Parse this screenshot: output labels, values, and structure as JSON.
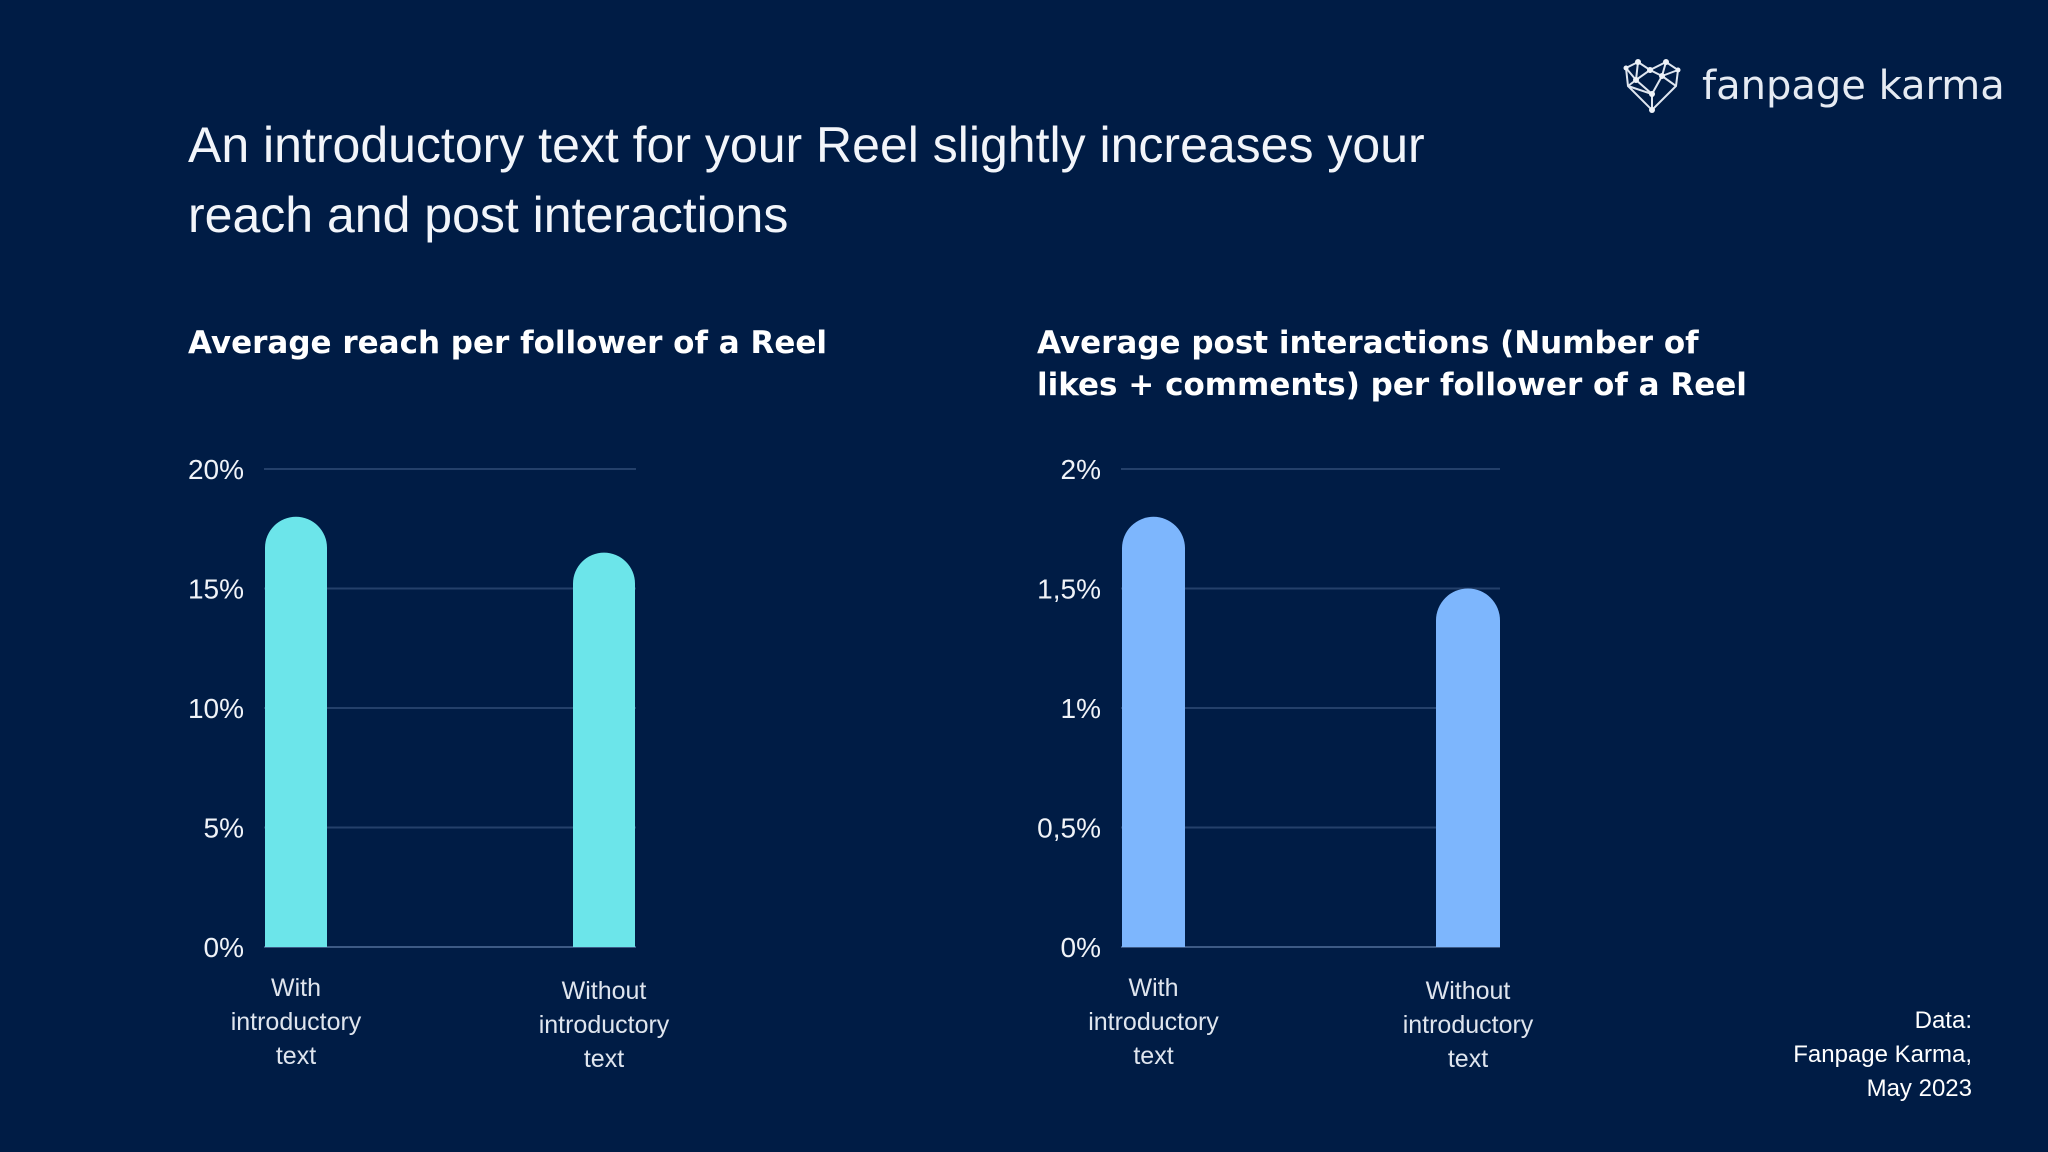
{
  "title": "An introductory text for your Reel slightly increases your reach and post interactions",
  "logo": {
    "text": "fanpage karma",
    "icon": "network-heart-icon"
  },
  "source": {
    "lines": [
      "Data:",
      "Fanpage Karma,",
      "May 2023"
    ]
  },
  "chart_data": [
    {
      "type": "bar",
      "title": "Average reach per follower of a Reel",
      "categories": [
        "With introductory text",
        "Without introductory text"
      ],
      "category_lines": [
        [
          "With",
          "introductory",
          "text"
        ],
        [
          "Without",
          "introductory",
          "text"
        ]
      ],
      "values": [
        18,
        16.5
      ],
      "unit": "%",
      "ylim": [
        0,
        20
      ],
      "yticks": [
        0,
        5,
        10,
        15,
        20
      ],
      "ytick_labels": [
        "0%",
        "5%",
        "10%",
        "15%",
        "20%"
      ],
      "grid": true,
      "color": "#6ce5ea"
    },
    {
      "type": "bar",
      "title": "Average post interactions (Number of likes + comments) per follower of a Reel",
      "categories": [
        "With introductory text",
        "Without introductory text"
      ],
      "category_lines": [
        [
          "With",
          "introductory",
          "text"
        ],
        [
          "Without",
          "introductory",
          "text"
        ]
      ],
      "values": [
        1.8,
        1.5
      ],
      "unit": "%",
      "ylim": [
        0,
        2
      ],
      "yticks": [
        0,
        0.5,
        1,
        1.5,
        2
      ],
      "ytick_labels": [
        "0%",
        "0,5%",
        "1%",
        "1,5%",
        "2%"
      ],
      "grid": true,
      "color": "#7db6fd"
    }
  ]
}
